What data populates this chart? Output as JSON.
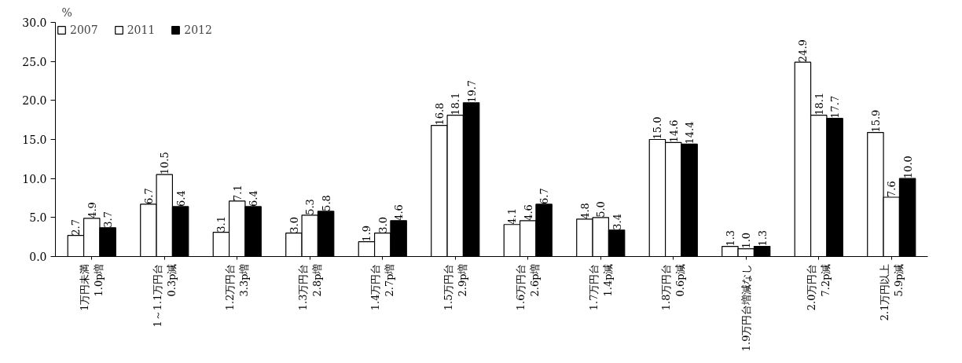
{
  "chart_data": {
    "type": "bar",
    "ylabel": "%",
    "categories": [
      "1万円未満\n1.0p増",
      "1～1.1万円台\n0.3p減",
      "1.2万円台\n3.3p増",
      "1.3万円台\n2.8p増",
      "1.4万円台\n2.7p増",
      "1.5万円台\n2.9p増",
      "1.6万円台\n2.6p増",
      "1.7万円台\n1.4p減",
      "1.8万円台\n0.6p減",
      "1.9万円台増減なし",
      "2.0万円台\n7.2p減",
      "2.1万円以上\n5.9p減"
    ],
    "series": [
      {
        "name": "2007",
        "color": "#ffffff",
        "values": [
          2.7,
          6.7,
          3.1,
          3.0,
          1.9,
          16.8,
          4.1,
          4.8,
          15.0,
          1.3,
          24.9,
          15.9
        ],
        "value_labels": [
          "2.7",
          "6.7",
          "3.1",
          "3.0",
          "1.9",
          "16.8",
          "4.1",
          "4.8",
          "15.0",
          "1.3",
          "24.9",
          "15.9"
        ]
      },
      {
        "name": "2011",
        "color": "#ffffff",
        "values": [
          4.9,
          10.5,
          7.1,
          5.3,
          3.0,
          18.1,
          4.6,
          5.0,
          14.6,
          1.0,
          18.1,
          7.6
        ],
        "value_labels": [
          "4.9",
          "10.5",
          "7.1",
          "5.3",
          "3.0",
          "18.1",
          "4.6",
          "5.0",
          "14.6",
          "1.0",
          "18.1",
          "7.6"
        ]
      },
      {
        "name": "2012",
        "color": "#000000",
        "values": [
          3.7,
          6.4,
          6.4,
          5.8,
          4.6,
          19.7,
          6.7,
          3.4,
          14.4,
          1.3,
          17.7,
          10.0
        ],
        "value_labels": [
          "3.7",
          "6.4",
          "6.4",
          "5.8",
          "4.6",
          "19.7",
          "6.7",
          "3.4",
          "14.4",
          "1.3",
          "17.7",
          "10.0"
        ]
      }
    ],
    "ylim": [
      0,
      30
    ],
    "yticks": [
      {
        "value": 0,
        "label": "0.0"
      },
      {
        "value": 5,
        "label": "5.0"
      },
      {
        "value": 10,
        "label": "10.0"
      },
      {
        "value": 15,
        "label": "15.0"
      },
      {
        "value": 20,
        "label": "20.0"
      },
      {
        "value": 25,
        "label": "25.0"
      },
      {
        "value": 30,
        "label": "30.0"
      }
    ],
    "legend": "top",
    "grid": false
  }
}
